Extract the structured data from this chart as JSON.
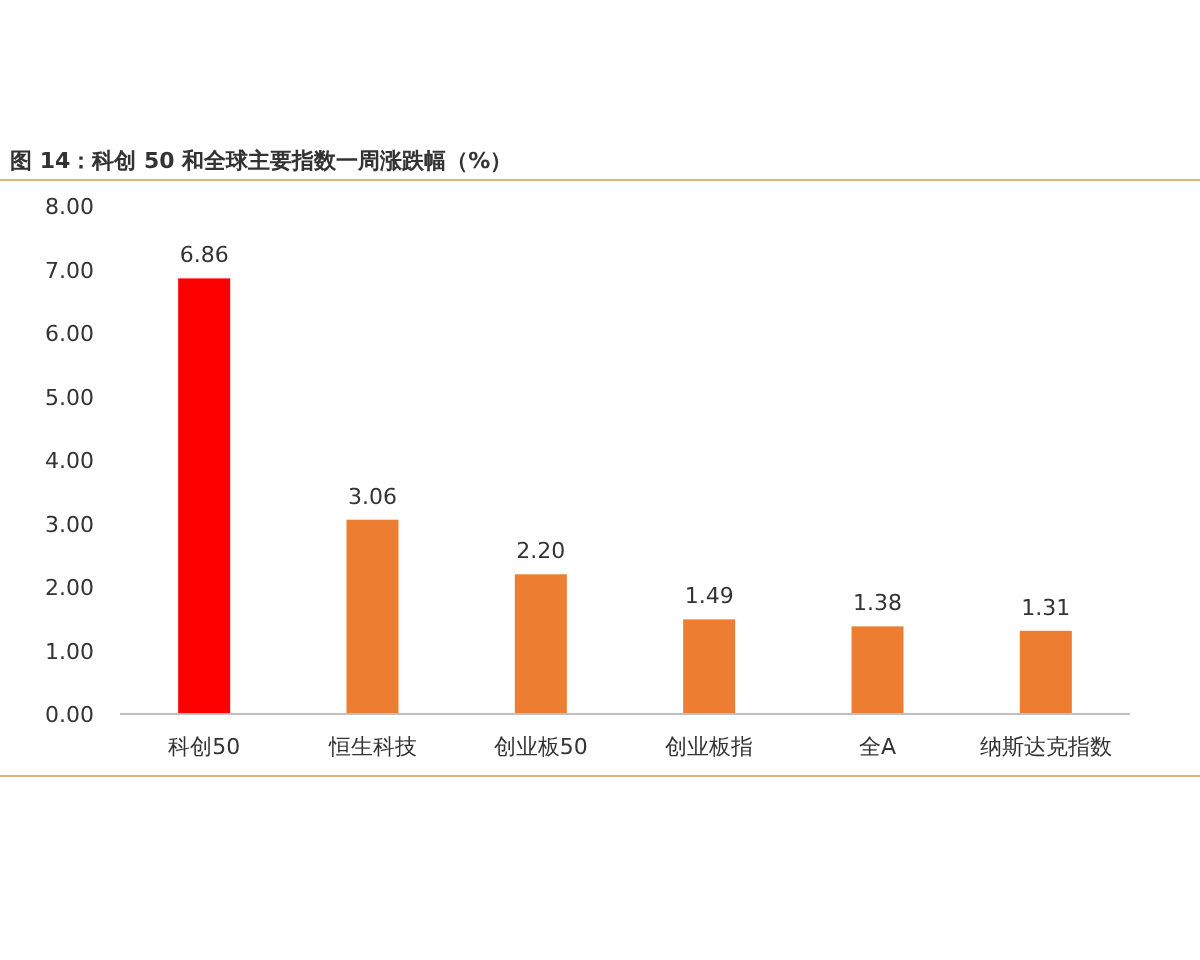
{
  "chart_data": {
    "type": "bar",
    "title": "图 14：科创 50 和全球主要指数一周涨跌幅（%）",
    "categories": [
      "科创50",
      "恒生科技",
      "创业板50",
      "创业板指",
      "全A",
      "纳斯达克指数"
    ],
    "values": [
      6.86,
      3.06,
      2.2,
      1.49,
      1.38,
      1.31
    ],
    "colors": [
      "#ff0000",
      "#ed7d31",
      "#ed7d31",
      "#ed7d31",
      "#ed7d31",
      "#ed7d31"
    ],
    "value_labels": [
      "6.86",
      "3.06",
      "2.20",
      "1.49",
      "1.38",
      "1.31"
    ],
    "ylim": [
      0,
      8
    ],
    "yticks": [
      {
        "value": 0,
        "label": "0.00"
      },
      {
        "value": 1,
        "label": "1.00"
      },
      {
        "value": 2,
        "label": "2.00"
      },
      {
        "value": 3,
        "label": "3.00"
      },
      {
        "value": 4,
        "label": "4.00"
      },
      {
        "value": 5,
        "label": "5.00"
      },
      {
        "value": 6,
        "label": "6.00"
      },
      {
        "value": 7,
        "label": "7.00"
      },
      {
        "value": 8,
        "label": "8.00"
      }
    ],
    "grid": false
  }
}
